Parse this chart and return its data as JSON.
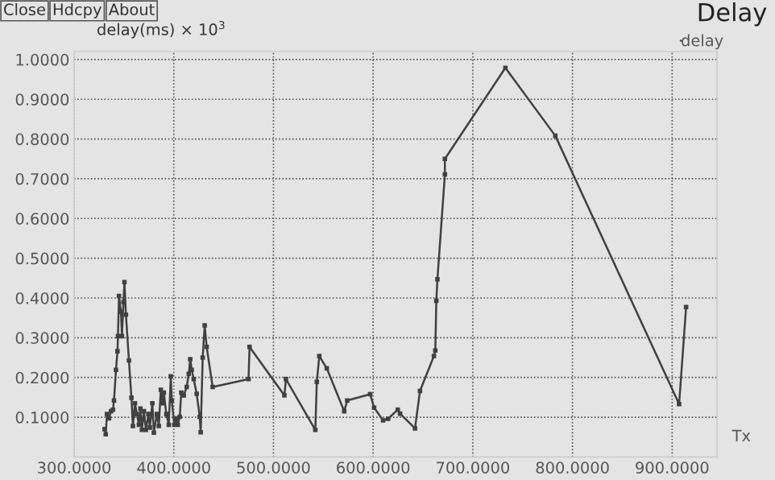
{
  "chart_data": {
    "type": "line",
    "title": "Delay",
    "ylabel": "delay(ms) × 10$^{3}$",
    "xlabel": "Tx",
    "annotations": [
      "Close",
      "Hdcpy",
      "About"
    ],
    "xlim": [
      300,
      945
    ],
    "ylim": [
      0,
      1.02
    ],
    "xticks": [
      {
        "value": 300,
        "label": "300.0000"
      },
      {
        "value": 400,
        "label": "400.0000"
      },
      {
        "value": 500,
        "label": "500.0000"
      },
      {
        "value": 600,
        "label": "600.0000"
      },
      {
        "value": 700,
        "label": "700.0000"
      },
      {
        "value": 800,
        "label": "800.0000"
      },
      {
        "value": 900,
        "label": "900.0000"
      }
    ],
    "yticks": [
      {
        "value": 0.1,
        "label": "0.1000"
      },
      {
        "value": 0.2,
        "label": "0.2000"
      },
      {
        "value": 0.3,
        "label": "0.3000"
      },
      {
        "value": 0.4,
        "label": "0.4000"
      },
      {
        "value": 0.5,
        "label": "0.5000"
      },
      {
        "value": 0.6,
        "label": "0.6000"
      },
      {
        "value": 0.7,
        "label": "0.7000"
      },
      {
        "value": 0.8,
        "label": "0.8000"
      },
      {
        "value": 0.9,
        "label": "0.9000"
      },
      {
        "value": 1.0,
        "label": "1.0000"
      }
    ],
    "grid": true,
    "legend": "top right",
    "marker": "square",
    "line_style": "solid",
    "series": [
      {
        "name": "delay",
        "color": "#404040",
        "x": [
          330.6,
          331.7,
          333,
          335,
          337,
          339,
          340,
          342,
          343.5,
          344,
          345,
          347,
          348,
          349.5,
          350.5,
          352,
          355,
          357.5,
          359,
          361,
          363,
          365,
          366.5,
          368,
          370,
          372,
          374.5,
          376,
          378.5,
          380,
          383,
          385,
          387,
          389,
          390,
          392.5,
          395,
          397,
          398,
          400.5,
          402,
          404,
          406,
          407.5,
          410,
          413,
          415,
          416.5,
          418,
          420,
          423,
          426,
          427,
          429,
          431,
          433,
          439,
          475,
          476,
          511,
          512.5,
          542,
          543.5,
          546,
          553.5,
          571,
          574,
          597,
          601,
          610,
          615,
          624.7,
          627,
          642,
          647,
          661,
          662.4,
          663.4,
          664.5,
          672,
          672,
          732.7,
          782.8,
          907,
          914
        ],
        "values": [
          0.07,
          0.057,
          0.108,
          0.097,
          0.115,
          0.119,
          0.142,
          0.219,
          0.266,
          0.304,
          0.405,
          0.365,
          0.304,
          0.39,
          0.44,
          0.358,
          0.243,
          0.149,
          0.078,
          0.135,
          0.108,
          0.081,
          0.122,
          0.068,
          0.115,
          0.068,
          0.108,
          0.074,
          0.135,
          0.061,
          0.108,
          0.078,
          0.169,
          0.135,
          0.162,
          0.108,
          0.081,
          0.203,
          0.142,
          0.081,
          0.097,
          0.081,
          0.101,
          0.162,
          0.155,
          0.176,
          0.209,
          0.246,
          0.219,
          0.196,
          0.159,
          0.101,
          0.062,
          0.25,
          0.331,
          0.277,
          0.176,
          0.196,
          0.277,
          0.155,
          0.196,
          0.068,
          0.189,
          0.254,
          0.223,
          0.115,
          0.142,
          0.158,
          0.124,
          0.092,
          0.096,
          0.119,
          0.109,
          0.072,
          0.166,
          0.254,
          0.268,
          0.393,
          0.447,
          0.711,
          0.75,
          0.979,
          0.808,
          0.133,
          0.377
        ]
      }
    ]
  }
}
